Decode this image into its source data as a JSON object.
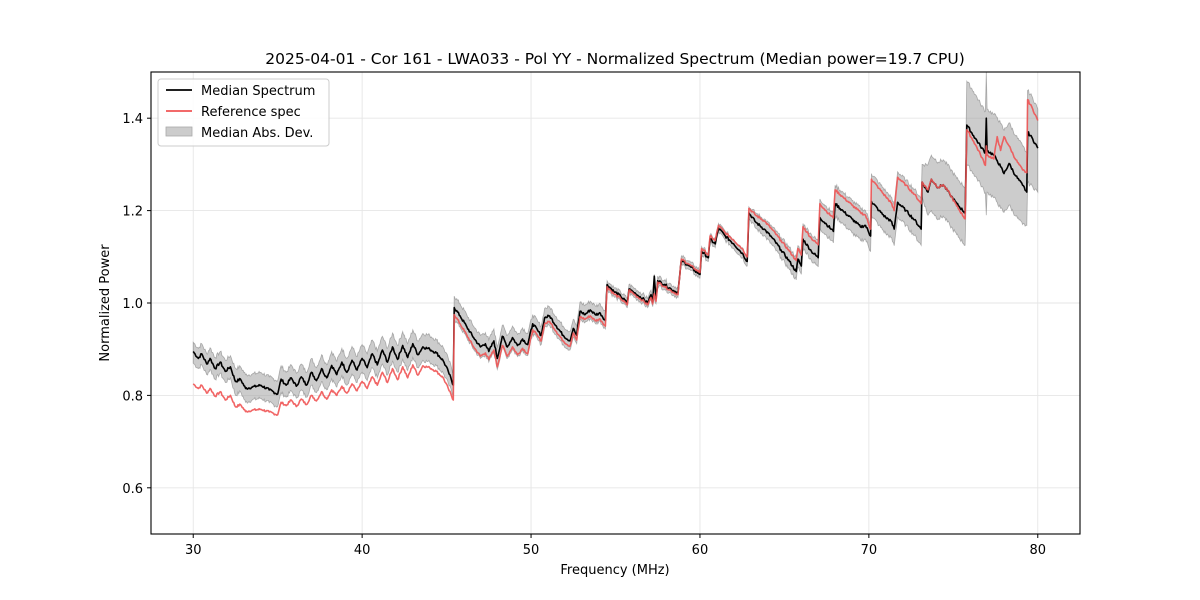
{
  "chart_data": {
    "type": "line",
    "title": "2025-04-01 - Cor 161 - LWA033 - Pol YY - Normalized Spectrum (Median power=19.7 CPU)",
    "xlabel": "Frequency (MHz)",
    "ylabel": "Normalized Power",
    "xlim": [
      27.5,
      82.5
    ],
    "ylim": [
      0.5,
      1.5
    ],
    "xticks": [
      30,
      40,
      50,
      60,
      70,
      80
    ],
    "xtick_labels": [
      "30",
      "40",
      "50",
      "60",
      "70",
      "80"
    ],
    "yticks": [
      0.6,
      0.8,
      1.0,
      1.2,
      1.4
    ],
    "ytick_labels": [
      "0.6",
      "0.8",
      "1.0",
      "1.2",
      "1.4"
    ],
    "grid": true,
    "legend": {
      "placement": "top-left",
      "entries": [
        {
          "label": "Median Spectrum",
          "kind": "line",
          "color": "#000000"
        },
        {
          "label": "Reference spec",
          "kind": "line",
          "color": "#f05454"
        },
        {
          "label": "Median Abs. Dev.",
          "kind": "band",
          "color": "#999999"
        }
      ]
    },
    "series_columns": [
      "freq_mhz",
      "median",
      "reference",
      "mad_lower",
      "mad_upper"
    ],
    "series": [
      [
        30.0,
        0.895,
        0.825,
        0.87,
        0.915
      ],
      [
        30.3,
        0.88,
        0.815,
        0.858,
        0.902
      ],
      [
        30.5,
        0.89,
        0.822,
        0.866,
        0.912
      ],
      [
        30.8,
        0.868,
        0.805,
        0.845,
        0.89
      ],
      [
        31.0,
        0.88,
        0.815,
        0.856,
        0.903
      ],
      [
        31.3,
        0.858,
        0.798,
        0.835,
        0.882
      ],
      [
        31.6,
        0.872,
        0.808,
        0.848,
        0.895
      ],
      [
        31.9,
        0.852,
        0.79,
        0.828,
        0.876
      ],
      [
        32.2,
        0.862,
        0.8,
        0.838,
        0.886
      ],
      [
        32.5,
        0.83,
        0.775,
        0.8,
        0.858
      ],
      [
        32.8,
        0.835,
        0.78,
        0.808,
        0.862
      ],
      [
        33.1,
        0.815,
        0.765,
        0.785,
        0.845
      ],
      [
        33.5,
        0.818,
        0.768,
        0.79,
        0.846
      ],
      [
        34.0,
        0.822,
        0.77,
        0.794,
        0.85
      ],
      [
        34.5,
        0.812,
        0.764,
        0.784,
        0.84
      ],
      [
        35.0,
        0.803,
        0.758,
        0.776,
        0.832
      ],
      [
        35.2,
        0.835,
        0.785,
        0.806,
        0.864
      ],
      [
        35.5,
        0.822,
        0.778,
        0.796,
        0.85
      ],
      [
        35.8,
        0.838,
        0.79,
        0.81,
        0.866
      ],
      [
        36.1,
        0.82,
        0.776,
        0.794,
        0.848
      ],
      [
        36.4,
        0.84,
        0.792,
        0.812,
        0.868
      ],
      [
        36.7,
        0.822,
        0.78,
        0.796,
        0.85
      ],
      [
        37.0,
        0.85,
        0.8,
        0.822,
        0.88
      ],
      [
        37.3,
        0.832,
        0.788,
        0.806,
        0.86
      ],
      [
        37.6,
        0.858,
        0.808,
        0.83,
        0.888
      ],
      [
        37.9,
        0.838,
        0.792,
        0.812,
        0.866
      ],
      [
        38.2,
        0.865,
        0.812,
        0.836,
        0.895
      ],
      [
        38.5,
        0.845,
        0.8,
        0.818,
        0.874
      ],
      [
        38.8,
        0.872,
        0.82,
        0.843,
        0.902
      ],
      [
        39.1,
        0.85,
        0.805,
        0.822,
        0.88
      ],
      [
        39.4,
        0.876,
        0.825,
        0.846,
        0.906
      ],
      [
        39.7,
        0.855,
        0.81,
        0.828,
        0.884
      ],
      [
        40.0,
        0.88,
        0.83,
        0.85,
        0.91
      ],
      [
        40.3,
        0.86,
        0.815,
        0.832,
        0.89
      ],
      [
        40.6,
        0.89,
        0.84,
        0.86,
        0.92
      ],
      [
        40.9,
        0.866,
        0.822,
        0.838,
        0.896
      ],
      [
        41.2,
        0.898,
        0.85,
        0.868,
        0.928
      ],
      [
        41.5,
        0.872,
        0.828,
        0.844,
        0.902
      ],
      [
        41.8,
        0.905,
        0.858,
        0.874,
        0.935
      ],
      [
        42.1,
        0.878,
        0.834,
        0.85,
        0.908
      ],
      [
        42.4,
        0.908,
        0.862,
        0.878,
        0.938
      ],
      [
        42.7,
        0.882,
        0.838,
        0.854,
        0.912
      ],
      [
        43.0,
        0.912,
        0.866,
        0.882,
        0.942
      ],
      [
        43.3,
        0.888,
        0.844,
        0.86,
        0.918
      ],
      [
        43.6,
        0.905,
        0.864,
        0.876,
        0.934
      ],
      [
        44.0,
        0.9,
        0.86,
        0.872,
        0.93
      ],
      [
        44.4,
        0.892,
        0.852,
        0.864,
        0.92
      ],
      [
        44.8,
        0.875,
        0.838,
        0.848,
        0.904
      ],
      [
        45.1,
        0.852,
        0.815,
        0.826,
        0.88
      ],
      [
        45.4,
        0.822,
        0.79,
        0.8,
        0.848
      ],
      [
        45.45,
        0.99,
        0.975,
        0.965,
        1.015
      ],
      [
        45.8,
        0.972,
        0.955,
        0.948,
        0.998
      ],
      [
        46.2,
        0.948,
        0.93,
        0.924,
        0.974
      ],
      [
        46.6,
        0.925,
        0.905,
        0.9,
        0.95
      ],
      [
        47.0,
        0.905,
        0.885,
        0.88,
        0.93
      ],
      [
        47.3,
        0.912,
        0.892,
        0.888,
        0.936
      ],
      [
        47.5,
        0.895,
        0.878,
        0.872,
        0.92
      ],
      [
        47.8,
        0.918,
        0.898,
        0.894,
        0.944
      ],
      [
        48.0,
        0.88,
        0.862,
        0.856,
        0.905
      ],
      [
        48.3,
        0.928,
        0.908,
        0.904,
        0.952
      ],
      [
        48.6,
        0.905,
        0.885,
        0.88,
        0.93
      ],
      [
        48.9,
        0.925,
        0.905,
        0.9,
        0.95
      ],
      [
        49.2,
        0.908,
        0.888,
        0.884,
        0.932
      ],
      [
        49.5,
        0.922,
        0.902,
        0.898,
        0.946
      ],
      [
        49.8,
        0.91,
        0.89,
        0.886,
        0.934
      ],
      [
        50.1,
        0.955,
        0.942,
        0.935,
        0.975
      ],
      [
        50.4,
        0.94,
        0.928,
        0.92,
        0.96
      ],
      [
        50.6,
        0.93,
        0.918,
        0.91,
        0.95
      ],
      [
        50.8,
        0.968,
        0.955,
        0.948,
        0.988
      ],
      [
        51.1,
        0.972,
        0.96,
        0.952,
        0.992
      ],
      [
        51.5,
        0.95,
        0.938,
        0.93,
        0.97
      ],
      [
        51.9,
        0.93,
        0.918,
        0.91,
        0.95
      ],
      [
        52.3,
        0.918,
        0.906,
        0.898,
        0.938
      ],
      [
        52.5,
        0.945,
        0.935,
        0.926,
        0.965
      ],
      [
        52.7,
        0.93,
        0.92,
        0.912,
        0.95
      ],
      [
        52.9,
        0.982,
        0.97,
        0.964,
        1.002
      ],
      [
        53.2,
        0.975,
        0.965,
        0.958,
        0.995
      ],
      [
        53.5,
        0.985,
        0.972,
        0.966,
        1.004
      ],
      [
        53.8,
        0.975,
        0.962,
        0.956,
        0.994
      ],
      [
        54.1,
        0.978,
        0.965,
        0.96,
        0.998
      ],
      [
        54.4,
        0.962,
        0.95,
        0.944,
        0.982
      ],
      [
        54.5,
        1.04,
        1.035,
        1.03,
        1.048
      ],
      [
        54.9,
        1.025,
        1.02,
        1.014,
        1.034
      ],
      [
        55.3,
        1.015,
        1.01,
        1.004,
        1.024
      ],
      [
        55.7,
        1.0,
        0.996,
        0.99,
        1.01
      ],
      [
        55.8,
        1.03,
        1.028,
        1.022,
        1.04
      ],
      [
        56.2,
        1.02,
        1.016,
        1.01,
        1.03
      ],
      [
        56.6,
        1.01,
        1.006,
        1.0,
        1.02
      ],
      [
        56.9,
        1.0,
        0.996,
        0.99,
        1.01
      ],
      [
        57.1,
        1.018,
        1.012,
        1.008,
        1.028
      ],
      [
        57.2,
        1.002,
        0.998,
        0.992,
        1.012
      ],
      [
        57.3,
        1.058,
        1.02,
        1.01,
        1.062
      ],
      [
        57.4,
        1.01,
        1.004,
        0.998,
        1.02
      ],
      [
        57.5,
        1.048,
        1.045,
        1.038,
        1.058
      ],
      [
        57.9,
        1.04,
        1.036,
        1.03,
        1.05
      ],
      [
        58.3,
        1.03,
        1.026,
        1.02,
        1.04
      ],
      [
        58.7,
        1.022,
        1.018,
        1.012,
        1.032
      ],
      [
        58.9,
        1.092,
        1.095,
        1.084,
        1.102
      ],
      [
        59.3,
        1.082,
        1.085,
        1.074,
        1.092
      ],
      [
        59.7,
        1.07,
        1.074,
        1.062,
        1.08
      ],
      [
        60.0,
        1.062,
        1.066,
        1.054,
        1.072
      ],
      [
        60.1,
        1.112,
        1.118,
        1.104,
        1.122
      ],
      [
        60.5,
        1.098,
        1.104,
        1.09,
        1.108
      ],
      [
        60.6,
        1.138,
        1.145,
        1.13,
        1.148
      ],
      [
        60.9,
        1.128,
        1.135,
        1.12,
        1.138
      ],
      [
        61.1,
        1.162,
        1.168,
        1.154,
        1.172
      ],
      [
        61.5,
        1.145,
        1.152,
        1.136,
        1.155
      ],
      [
        62.0,
        1.128,
        1.136,
        1.118,
        1.138
      ],
      [
        62.5,
        1.108,
        1.118,
        1.098,
        1.12
      ],
      [
        62.8,
        1.09,
        1.1,
        1.08,
        1.102
      ],
      [
        62.9,
        1.195,
        1.205,
        1.184,
        1.208
      ],
      [
        63.3,
        1.175,
        1.19,
        1.162,
        1.195
      ],
      [
        63.8,
        1.16,
        1.178,
        1.146,
        1.182
      ],
      [
        64.3,
        1.14,
        1.158,
        1.124,
        1.164
      ],
      [
        64.8,
        1.115,
        1.135,
        1.098,
        1.142
      ],
      [
        65.3,
        1.09,
        1.112,
        1.072,
        1.12
      ],
      [
        65.7,
        1.068,
        1.092,
        1.05,
        1.098
      ],
      [
        65.8,
        1.095,
        1.118,
        1.078,
        1.124
      ],
      [
        66.0,
        1.08,
        1.104,
        1.062,
        1.11
      ],
      [
        66.1,
        1.138,
        1.165,
        1.12,
        1.172
      ],
      [
        66.6,
        1.112,
        1.14,
        1.092,
        1.148
      ],
      [
        67.0,
        1.098,
        1.126,
        1.078,
        1.134
      ],
      [
        67.1,
        1.185,
        1.215,
        1.162,
        1.225
      ],
      [
        67.5,
        1.17,
        1.198,
        1.146,
        1.208
      ],
      [
        67.9,
        1.155,
        1.184,
        1.13,
        1.194
      ],
      [
        68.0,
        1.215,
        1.245,
        1.188,
        1.255
      ],
      [
        68.5,
        1.198,
        1.228,
        1.17,
        1.238
      ],
      [
        69.0,
        1.182,
        1.212,
        1.152,
        1.222
      ],
      [
        69.5,
        1.165,
        1.196,
        1.136,
        1.206
      ],
      [
        69.8,
        1.168,
        1.19,
        1.138,
        1.2
      ],
      [
        70.1,
        1.145,
        1.16,
        1.112,
        1.172
      ],
      [
        70.15,
        1.22,
        1.268,
        1.19,
        1.28
      ],
      [
        70.6,
        1.2,
        1.248,
        1.168,
        1.26
      ],
      [
        71.0,
        1.185,
        1.23,
        1.15,
        1.242
      ],
      [
        71.3,
        1.178,
        1.218,
        1.142,
        1.23
      ],
      [
        71.5,
        1.16,
        1.2,
        1.124,
        1.212
      ],
      [
        71.7,
        1.218,
        1.272,
        1.186,
        1.284
      ],
      [
        72.2,
        1.2,
        1.255,
        1.168,
        1.266
      ],
      [
        72.7,
        1.18,
        1.235,
        1.146,
        1.246
      ],
      [
        73.1,
        1.16,
        1.215,
        1.125,
        1.226
      ],
      [
        73.15,
        1.262,
        1.262,
        1.23,
        1.3
      ],
      [
        73.5,
        1.24,
        1.245,
        1.19,
        1.3
      ],
      [
        73.7,
        1.268,
        1.268,
        1.2,
        1.32
      ],
      [
        74.1,
        1.25,
        1.25,
        1.182,
        1.305
      ],
      [
        74.4,
        1.256,
        1.256,
        1.188,
        1.31
      ],
      [
        74.8,
        1.235,
        1.236,
        1.168,
        1.292
      ],
      [
        75.2,
        1.215,
        1.21,
        1.148,
        1.27
      ],
      [
        75.7,
        1.195,
        1.182,
        1.125,
        1.25
      ],
      [
        75.8,
        1.385,
        1.375,
        1.3,
        1.48
      ],
      [
        76.2,
        1.362,
        1.35,
        1.28,
        1.458
      ],
      [
        76.6,
        1.34,
        1.322,
        1.258,
        1.432
      ],
      [
        76.9,
        1.325,
        1.298,
        1.238,
        1.415
      ],
      [
        76.95,
        1.4,
        1.34,
        1.19,
        1.5
      ],
      [
        77.0,
        1.33,
        1.32,
        1.24,
        1.42
      ],
      [
        77.4,
        1.32,
        1.312,
        1.228,
        1.408
      ],
      [
        77.6,
        1.308,
        1.36,
        1.218,
        1.402
      ],
      [
        77.8,
        1.295,
        1.33,
        1.205,
        1.388
      ],
      [
        78.0,
        1.28,
        1.36,
        1.196,
        1.374
      ],
      [
        78.3,
        1.302,
        1.34,
        1.212,
        1.39
      ],
      [
        78.7,
        1.275,
        1.31,
        1.188,
        1.362
      ],
      [
        79.1,
        1.255,
        1.288,
        1.17,
        1.34
      ],
      [
        79.35,
        1.24,
        1.282,
        1.168,
        1.325
      ],
      [
        79.4,
        1.37,
        1.44,
        1.26,
        1.46
      ],
      [
        79.7,
        1.355,
        1.42,
        1.252,
        1.444
      ],
      [
        80.0,
        1.335,
        1.395,
        1.24,
        1.42
      ]
    ]
  }
}
